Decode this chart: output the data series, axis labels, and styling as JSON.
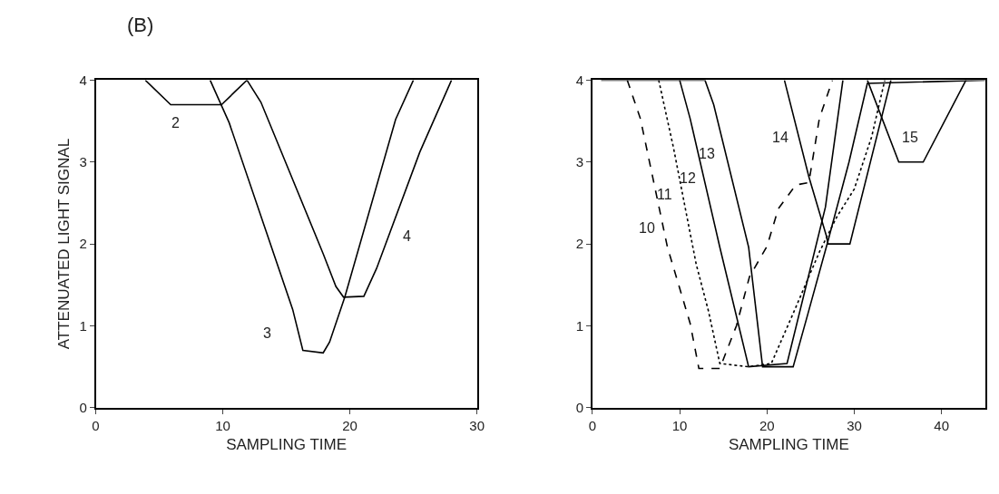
{
  "chart_data": [
    {
      "type": "line",
      "title": "(B)",
      "xlabel": "SAMPLING TIME",
      "ylabel": "ATTENUATED LIGHT SIGNAL",
      "xlim": [
        0,
        30
      ],
      "xticks": [
        0,
        10,
        20,
        30
      ],
      "ylim": [
        0,
        4
      ],
      "yticks": [
        0,
        1,
        2,
        3,
        4
      ],
      "marker": "none",
      "series": [
        {
          "color": "#000000",
          "line_style": "solid",
          "x": [
            3.9,
            5.9,
            9.9,
            11.9
          ],
          "values": [
            4,
            3.7,
            3.7,
            4
          ]
        },
        {
          "color": "#000000",
          "line_style": "solid",
          "x": [
            9.0,
            10.5,
            15.5,
            16.3,
            17.9,
            18.4,
            19.6,
            23.6,
            25.0
          ],
          "values": [
            4,
            3.48,
            1.2,
            0.7,
            0.67,
            0.8,
            1.35,
            3.52,
            4
          ]
        },
        {
          "color": "#000000",
          "line_style": "solid",
          "x": [
            11.9,
            13.0,
            17.9,
            18.9,
            19.5,
            21.1,
            22.1,
            25.5,
            28.0
          ],
          "values": [
            4,
            3.73,
            1.88,
            1.48,
            1.35,
            1.36,
            1.7,
            3.12,
            4
          ]
        }
      ],
      "annotations": [
        {
          "text": "2",
          "x": 6.3,
          "y": 3.7
        },
        {
          "text": "3",
          "x": 15.5,
          "y": 1.2
        },
        {
          "text": "4",
          "x": 23.06,
          "y": 2.1
        }
      ]
    },
    {
      "type": "line",
      "xlabel": "SAMPLING TIME",
      "xlim": [
        0,
        45
      ],
      "xticks": [
        0,
        10,
        20,
        30,
        40
      ],
      "ylim": [
        0,
        4
      ],
      "yticks": [
        0,
        1,
        2,
        3,
        4
      ],
      "marker": "none",
      "series": [
        {
          "color": "#000000",
          "line_style": "dashed",
          "x": [
            4.0,
            5.5,
            8.6,
            11.2,
            12.2,
            14.6,
            16.5,
            18.0,
            20.0,
            21.3,
            23.3,
            24.8,
            26.0,
            27.5
          ],
          "values": [
            4,
            3.53,
            1.96,
            1.03,
            0.48,
            0.48,
            1.0,
            1.6,
            1.97,
            2.43,
            2.72,
            2.75,
            3.53,
            4
          ]
        },
        {
          "color": "#000000",
          "line_style": "dotted",
          "x": [
            7.6,
            9.3,
            11.9,
            13.3,
            14.6,
            17.9,
            20.5,
            23.0,
            26.0,
            28.0,
            30.0,
            32.0,
            33.5
          ],
          "values": [
            4,
            3.17,
            1.75,
            1.18,
            0.54,
            0.5,
            0.54,
            1.15,
            1.9,
            2.33,
            2.67,
            3.31,
            4
          ]
        },
        {
          "color": "#000000",
          "line_style": "solid",
          "x": [
            10.0,
            11.2,
            14.6,
            17.9,
            22.3,
            26.7,
            28.7
          ],
          "values": [
            4,
            3.53,
            1.96,
            0.5,
            0.54,
            2.45,
            4
          ]
        },
        {
          "color": "#000000",
          "line_style": "solid",
          "x": [
            1.0,
            12.9,
            13.9,
            17.9,
            19.5,
            23.0,
            24.7,
            27.0,
            29.4,
            31.5,
            45.0
          ],
          "values": [
            4,
            4,
            3.7,
            1.96,
            0.5,
            0.5,
            1.15,
            2.04,
            3.0,
            3.96,
            4
          ]
        },
        {
          "color": "#000000",
          "line_style": "solid",
          "x": [
            22.0,
            24.8,
            26.8,
            27.0,
            29.5,
            34.2
          ],
          "values": [
            4,
            2.82,
            2.1,
            2.0,
            2.0,
            4
          ]
        },
        {
          "color": "#000000",
          "line_style": "solid",
          "x": [
            31.5,
            35.1,
            37.9,
            42.8
          ],
          "values": [
            4,
            3.0,
            3.0,
            4
          ]
        }
      ],
      "annotations": [
        {
          "text": "10",
          "x": 8.13,
          "y": 2.2
        },
        {
          "text": "11",
          "x": 10.34,
          "y": 2.6
        },
        {
          "text": "12",
          "x": 12.78,
          "y": 2.8
        },
        {
          "text": "13",
          "x": 15.28,
          "y": 3.1
        },
        {
          "text": "14",
          "x": 23.66,
          "y": 3.3
        },
        {
          "text": "15",
          "x": 34.1,
          "y": 3.3
        }
      ]
    }
  ]
}
